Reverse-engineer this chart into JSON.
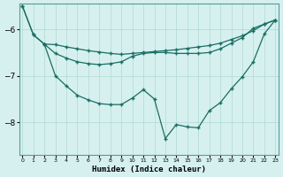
{
  "xlabel": "Humidex (Indice chaleur)",
  "bg_color": "#d6f0f0",
  "line_color": "#1a6e62",
  "grid_color": "#b8dcd8",
  "xlim": [
    -0.3,
    23.3
  ],
  "ylim": [
    -8.7,
    -5.45
  ],
  "yticks": [
    -8,
    -7,
    -6
  ],
  "xticks": [
    0,
    1,
    2,
    3,
    4,
    5,
    6,
    7,
    8,
    9,
    10,
    11,
    12,
    13,
    14,
    15,
    16,
    17,
    18,
    19,
    20,
    21,
    22,
    23
  ],
  "line1_x": [
    0,
    1,
    2,
    3,
    4,
    5,
    6,
    7,
    8,
    9,
    10,
    11,
    12,
    13,
    14,
    15,
    16,
    17,
    18,
    19,
    20,
    21,
    22,
    23
  ],
  "line1_y": [
    -5.5,
    -6.12,
    -6.32,
    -6.33,
    -6.38,
    -6.42,
    -6.46,
    -6.49,
    -6.52,
    -6.54,
    -6.52,
    -6.5,
    -6.48,
    -6.46,
    -6.44,
    -6.41,
    -6.38,
    -6.35,
    -6.3,
    -6.22,
    -6.14,
    -6.03,
    -5.89,
    -5.8
  ],
  "line2_x": [
    0,
    1,
    2,
    3,
    4,
    5,
    6,
    7,
    8,
    9,
    10,
    11,
    12,
    13,
    14,
    15,
    16,
    17,
    18,
    19,
    20,
    21,
    22,
    23
  ],
  "line2_y": [
    -5.5,
    -6.12,
    -6.32,
    -6.52,
    -6.62,
    -6.7,
    -6.74,
    -6.76,
    -6.74,
    -6.7,
    -6.58,
    -6.52,
    -6.5,
    -6.5,
    -6.52,
    -6.52,
    -6.52,
    -6.5,
    -6.42,
    -6.3,
    -6.18,
    -5.98,
    -5.89,
    -5.8
  ],
  "line3_x": [
    2,
    3,
    4,
    5,
    6,
    7,
    8,
    9,
    10,
    11,
    12,
    13,
    14,
    15,
    16,
    17,
    18,
    19,
    20,
    21,
    22,
    23
  ],
  "line3_y": [
    -6.32,
    -7.0,
    -7.22,
    -7.42,
    -7.52,
    -7.6,
    -7.62,
    -7.62,
    -7.48,
    -7.3,
    -7.5,
    -8.35,
    -8.05,
    -8.1,
    -8.12,
    -7.75,
    -7.58,
    -7.28,
    -7.02,
    -6.7,
    -6.1,
    -5.8
  ]
}
